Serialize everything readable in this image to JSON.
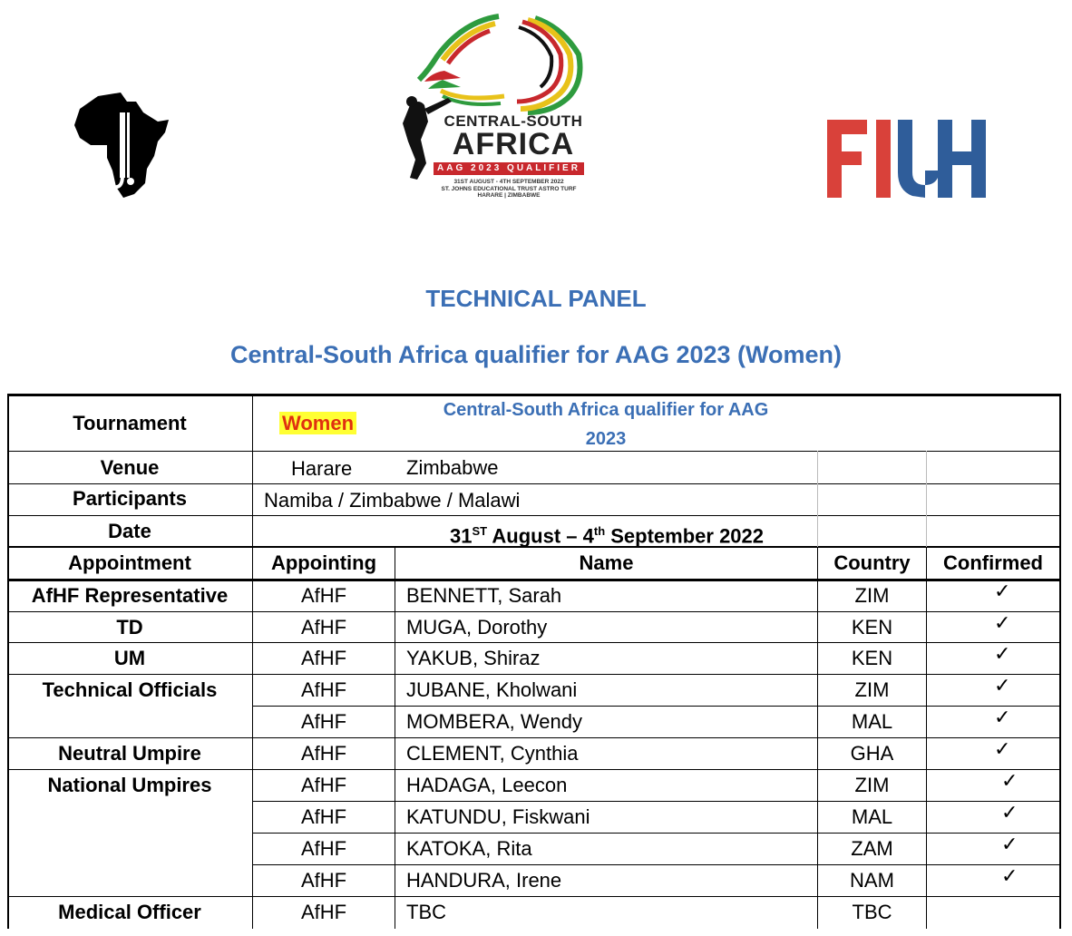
{
  "logos": {
    "left": "afhf-logo",
    "center": {
      "line1": "CENTRAL-SOUTH",
      "line2": "AFRICA",
      "line3": "AAG 2023 QUALIFIER",
      "line4": "31ST AUGUST - 4TH SEPTEMBER 2022",
      "line5": "ST. JOHNS EDUCATIONAL TRUST ASTRO TURF",
      "line6": "HARARE | ZIMBABWE"
    },
    "right": "FIH"
  },
  "headings": {
    "title": "TECHNICAL PANEL",
    "subtitle": "Central-South Africa qualifier for AAG 2023 (Women)"
  },
  "info": {
    "tournament_label": "Tournament",
    "tournament_gender": "Women",
    "tournament_name_1": "Central-South Africa qualifier for AAG",
    "tournament_name_2": "2023",
    "venue_label": "Venue",
    "venue_city": "Harare",
    "venue_country": "Zimbabwe",
    "participants_label": "Participants",
    "participants_value": "Namiba  / Zimbabwe / Malawi",
    "date_label": "Date",
    "date_day1": "31",
    "date_sup1": "ST",
    "date_mid": " August – 4",
    "date_sup2": "th",
    "date_end": " September 2022"
  },
  "columns": {
    "appointment": "Appointment",
    "appointing": "Appointing",
    "name": "Name",
    "country": "Country",
    "confirmed": "Confirmed"
  },
  "rows": [
    {
      "appointment": "AfHF Representative",
      "appointing": "AfHF",
      "name": "BENNETT, Sarah",
      "country": "ZIM",
      "confirmed": "✓"
    },
    {
      "appointment": "TD",
      "appointing": "AfHF",
      "name": "MUGA, Dorothy",
      "country": "KEN",
      "confirmed": "✓"
    },
    {
      "appointment": "UM",
      "appointing": "AfHF",
      "name": "YAKUB, Shiraz",
      "country": "KEN",
      "confirmed": "✓"
    },
    {
      "appointment": "Technical Officials",
      "appointing": "AfHF",
      "name": "JUBANE, Kholwani",
      "country": "ZIM",
      "confirmed": "✓"
    },
    {
      "appointment": "",
      "appointing": "AfHF",
      "name": "MOMBERA, Wendy",
      "country": "MAL",
      "confirmed": "✓"
    },
    {
      "appointment": "Neutral Umpire",
      "appointing": "AfHF",
      "name": "CLEMENT, Cynthia",
      "country": "GHA",
      "confirmed": "✓"
    },
    {
      "appointment": "National Umpires",
      "appointing": "AfHF",
      "name": "HADAGA, Leecon",
      "country": "ZIM",
      "confirmed": "✓"
    },
    {
      "appointment": "",
      "appointing": "AfHF",
      "name": "KATUNDU, Fiskwani",
      "country": "MAL",
      "confirmed": "✓"
    },
    {
      "appointment": "",
      "appointing": "AfHF",
      "name": "KATOKA, Rita",
      "country": "ZAM",
      "confirmed": "✓"
    },
    {
      "appointment": "",
      "appointing": "AfHF",
      "name": "HANDURA, Irene",
      "country": "NAM",
      "confirmed": "✓"
    },
    {
      "appointment": "Medical Officer",
      "appointing": "AfHF",
      "name": "TBC",
      "country": "TBC",
      "confirmed": ""
    }
  ],
  "colors": {
    "heading_blue": "#3b6fb5",
    "fih_red": "#d9413a",
    "fih_blue": "#2f5d9a",
    "highlight_yellow": "#ffff33",
    "women_red": "#e03010"
  }
}
